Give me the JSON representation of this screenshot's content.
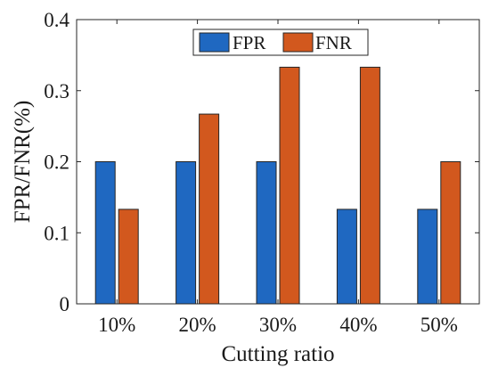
{
  "chart_data": {
    "type": "bar",
    "title": "",
    "xlabel": "Cutting ratio",
    "ylabel": "FPR/FNR(%)",
    "categories": [
      "10%",
      "20%",
      "30%",
      "40%",
      "50%"
    ],
    "series": [
      {
        "name": "FPR",
        "color": "#1f68c1",
        "values": [
          0.2,
          0.2,
          0.2,
          0.133,
          0.133
        ]
      },
      {
        "name": "FNR",
        "color": "#d2581e",
        "values": [
          0.133,
          0.267,
          0.333,
          0.333,
          0.2
        ]
      }
    ],
    "ylim": [
      0,
      0.4
    ],
    "yticks": [
      "0",
      "0.1",
      "0.2",
      "0.3",
      "0.4"
    ],
    "grid": false,
    "legend_position": "top-center",
    "legend_orientation": "horizontal"
  }
}
